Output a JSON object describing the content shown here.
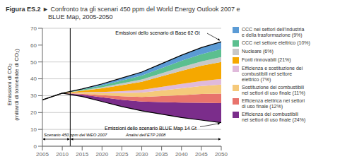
{
  "chart_data": {
    "type": "area",
    "title": "Figura ES.2",
    "subtitle": "► Confronto tra gli scenari 450 ppm del World Energy Outlook 2007 e\nBLUE Map, 2005-2050",
    "ylabel": "Emissioni di CO₂\n(miliardi di tonnellate di CO₂)",
    "x": [
      2005,
      2010,
      2015,
      2020,
      2025,
      2030,
      2035,
      2040,
      2045,
      2050
    ],
    "stacked": true,
    "grid": true,
    "legend": "right",
    "series": [
      {
        "type": "line",
        "color": "#000000",
        "values": [
          27.5,
          31.5,
          29.5,
          26.5,
          23.5,
          21.0,
          19.0,
          17.0,
          15.5,
          14.0
        ]
      },
      {
        "type": "area",
        "name": "Efficienza dei combustibili\nnei settori di uso finale (24%)",
        "color": "#7B2D8B",
        "values": [
          0,
          0,
          1.08,
          2.52,
          4.08,
          5.52,
          7.2,
          8.88,
          10.32,
          11.52
        ]
      },
      {
        "type": "area",
        "name": "Efficienza elettrica nei settori\ndi uso finale (12%)",
        "color": "#E8736C",
        "values": [
          0,
          0,
          0.54,
          1.26,
          2.04,
          2.76,
          3.6,
          4.44,
          5.16,
          5.76
        ]
      },
      {
        "type": "area",
        "name": "Sostituzione dei combustibili\nnei settori di uso finale (11%)",
        "color": "#F5C97A",
        "values": [
          0,
          0,
          0.495,
          1.155,
          1.87,
          2.53,
          3.3,
          4.07,
          4.73,
          5.28
        ]
      },
      {
        "type": "area",
        "name": "Efficienza e sostituzione dei\ncombustibili nel settore\nelettrico (7%)",
        "color": "#E0BADB",
        "values": [
          0,
          0,
          0.315,
          0.735,
          1.19,
          1.61,
          2.1,
          2.59,
          3.01,
          3.36
        ]
      },
      {
        "type": "area",
        "name": "Fonti rinnovabili (21%)",
        "color": "#F5A800",
        "values": [
          0,
          0,
          0.945,
          2.205,
          3.57,
          4.83,
          6.3,
          7.77,
          9.03,
          10.08
        ]
      },
      {
        "type": "area",
        "name": "Nucleare (6%)",
        "color": "#C8C8C8",
        "values": [
          0,
          0,
          0.27,
          0.63,
          1.02,
          1.38,
          1.8,
          2.22,
          2.58,
          2.88
        ]
      },
      {
        "type": "area",
        "name": "CCC nel settore elettrico (10%)",
        "color": "#5BBF8F",
        "values": [
          0,
          0,
          0.45,
          1.05,
          1.7,
          2.3,
          3,
          3.7,
          4.3,
          4.8
        ]
      },
      {
        "type": "area",
        "name": "CCC nei settori dell’industria\ne della trasformazione (9%)",
        "color": "#5B9BD5",
        "values": [
          0,
          0,
          0.405,
          0.945,
          1.53,
          2.07,
          2.7,
          3.33,
          3.87,
          4.32
        ]
      },
      {
        "type": "line",
        "color": "#000000",
        "values": [
          27.5,
          31.5,
          34.0,
          37.0,
          40.5,
          44.0,
          49.0,
          54.0,
          58.5,
          62.0
        ]
      }
    ],
    "annotations": [
      {
        "text": "Emissioni dello scenario di Base 62 Gt",
        "x": 2050,
        "y": 62
      },
      {
        "text": "Emissioni dello scenario BLUE Map 14 Gt",
        "x": 2050,
        "y": 14
      }
    ],
    "spans": [
      {
        "text": "Scenario 450 ppm del WEO 2007",
        "x": [
          2005,
          2012
        ]
      },
      {
        "text": "Analisi dell’ETP 2008",
        "x": [
          2012,
          2050
        ]
      }
    ],
    "vline": 2012,
    "xlim": [
      2005,
      2050
    ],
    "xticks": [
      2005,
      2010,
      2015,
      2020,
      2025,
      2030,
      2035,
      2040,
      2045,
      2050
    ],
    "ylim": [
      0,
      70
    ],
    "yticks": [
      0,
      10,
      20,
      30,
      40,
      50,
      60,
      70
    ]
  }
}
